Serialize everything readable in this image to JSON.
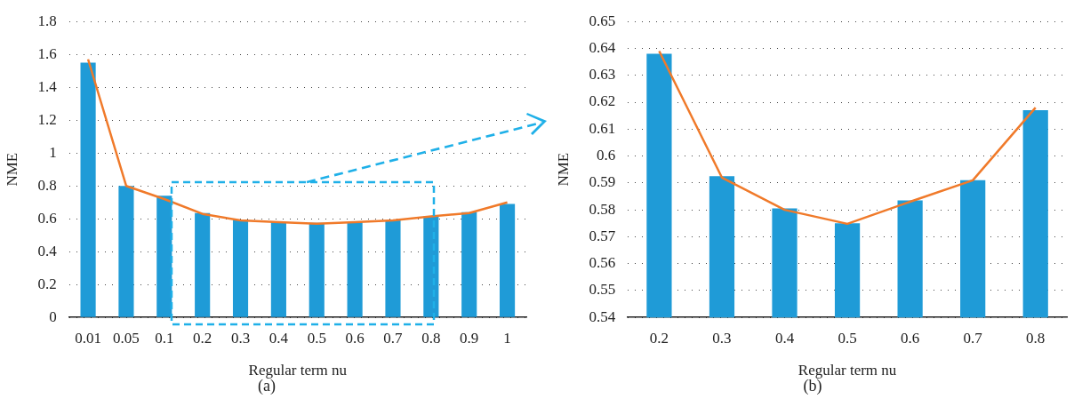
{
  "chart_data": [
    {
      "type": "bar",
      "xlabel": "Regular term nu",
      "ylabel": "NME",
      "annotations": [
        "(a)"
      ],
      "categories": [
        "0.01",
        "0.05",
        "0.1",
        "0.2",
        "0.3",
        "0.4",
        "0.5",
        "0.6",
        "0.7",
        "0.8",
        "0.9",
        "1"
      ],
      "series": [
        {
          "color": "#1f9bd7",
          "values": [
            1.55,
            0.8,
            0.74,
            0.635,
            0.595,
            0.58,
            0.575,
            0.58,
            0.59,
            0.615,
            0.64,
            0.69
          ]
        },
        {
          "type": "line",
          "color": "#f07a2a",
          "values": [
            1.57,
            0.8,
            0.72,
            0.63,
            0.59,
            0.58,
            0.57,
            0.58,
            0.59,
            0.615,
            0.635,
            0.7
          ]
        }
      ],
      "ylim": [
        0,
        1.8
      ],
      "yticks": [
        0,
        0.2,
        0.4,
        0.6,
        0.8,
        1,
        1.2,
        1.4,
        1.6,
        1.8
      ],
      "grid": "y",
      "marker": "none"
    },
    {
      "type": "bar",
      "xlabel": "Regular term nu",
      "ylabel": "NME",
      "annotations": [
        "(b)"
      ],
      "categories": [
        "0.2",
        "0.3",
        "0.4",
        "0.5",
        "0.6",
        "0.7",
        "0.8"
      ],
      "series": [
        {
          "color": "#1f9bd7",
          "values": [
            0.638,
            0.5925,
            0.5805,
            0.575,
            0.5835,
            0.591,
            0.617
          ]
        },
        {
          "type": "line",
          "color": "#f07a2a",
          "values": [
            0.639,
            0.592,
            0.58,
            0.5748,
            0.583,
            0.591,
            0.618
          ]
        }
      ],
      "ylim": [
        0.54,
        0.65
      ],
      "yticks": [
        0.54,
        0.55,
        0.56,
        0.57,
        0.58,
        0.59,
        0.6,
        0.61,
        0.62,
        0.63,
        0.64,
        0.65
      ],
      "grid": "y",
      "marker": "none"
    }
  ]
}
